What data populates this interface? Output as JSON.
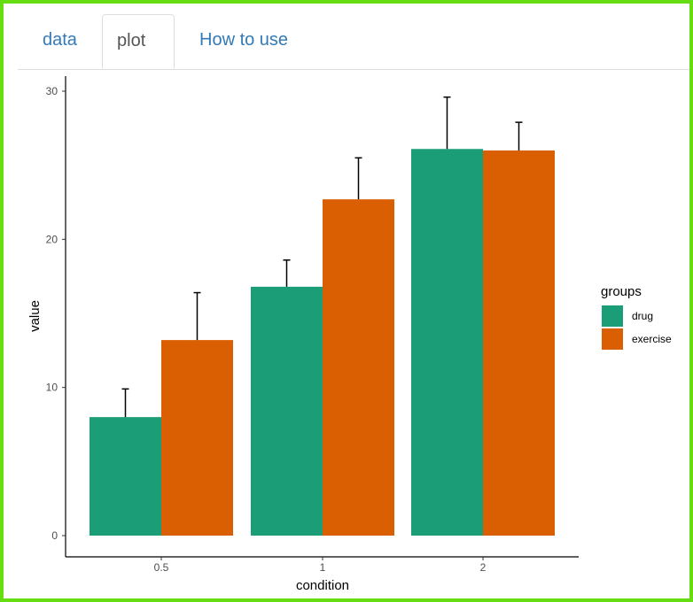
{
  "tabs": [
    {
      "label": "data",
      "active": false
    },
    {
      "label": "plot",
      "active": true
    },
    {
      "label": "How to use",
      "active": false
    }
  ],
  "chart_data": {
    "type": "bar",
    "categories": [
      "0.5",
      "1",
      "2"
    ],
    "xlabel": "condition",
    "ylabel": "value",
    "ylim": [
      0,
      30
    ],
    "yticks": [
      0,
      10,
      20,
      30
    ],
    "legend_title": "groups",
    "legend_position": "right",
    "grid": false,
    "series": [
      {
        "name": "drug",
        "color": "#1b9e77",
        "values": [
          8.0,
          16.8,
          26.1
        ],
        "error_upper": [
          9.9,
          18.6,
          29.6
        ]
      },
      {
        "name": "exercise",
        "color": "#d95f02",
        "values": [
          13.2,
          22.7,
          26.0
        ],
        "error_upper": [
          16.4,
          25.5,
          27.9
        ]
      }
    ]
  }
}
